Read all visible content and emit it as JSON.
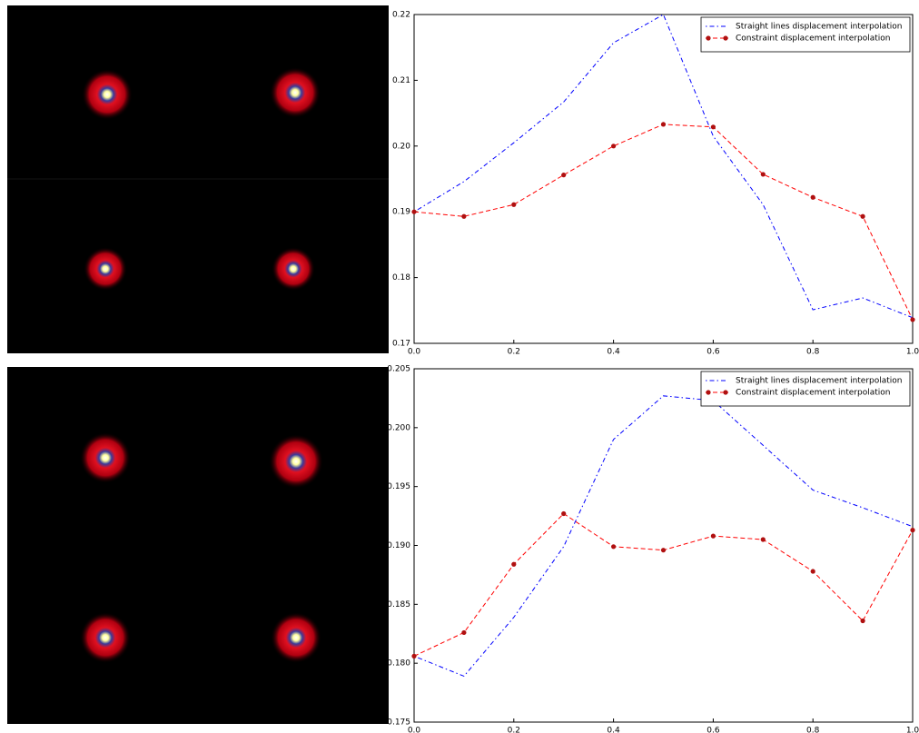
{
  "chart_data": [
    {
      "type": "line",
      "legend": "upper right",
      "x": [
        0,
        0.1,
        0.2,
        0.3,
        0.4,
        0.5,
        0.6,
        0.7,
        0.8,
        0.9,
        1.0
      ],
      "xlim": [
        0,
        1
      ],
      "ylim": [
        0.17,
        0.22
      ],
      "xticks": [
        {
          "value": 0,
          "label": "0.0"
        },
        {
          "value": 0.2,
          "label": "0.2"
        },
        {
          "value": 0.4,
          "label": "0.4"
        },
        {
          "value": 0.6,
          "label": "0.6"
        },
        {
          "value": 0.8,
          "label": "0.8"
        },
        {
          "value": 1,
          "label": "1.0"
        }
      ],
      "yticks": [
        0.17,
        0.18,
        0.19,
        {
          "value": 0.2,
          "label": "0.20"
        },
        0.21,
        0.22
      ],
      "series": [
        {
          "name": "Straight lines displacement interpolation",
          "color": "#0000ff",
          "linestyle": "dashdot",
          "marker": null,
          "values": [
            0.19,
            0.1946,
            0.2005,
            0.2067,
            0.2157,
            0.22,
            0.2015,
            0.1911,
            0.1751,
            0.1769,
            0.1739
          ]
        },
        {
          "name": "Constraint displacement interpolation",
          "color": "#ff0000",
          "linestyle": "dashed",
          "marker": "#b01010",
          "values": [
            0.19,
            0.1893,
            0.1911,
            0.1956,
            0.2,
            0.2033,
            0.2029,
            0.1957,
            0.1922,
            0.1893,
            0.1736
          ]
        }
      ]
    },
    {
      "type": "line",
      "legend": "upper right",
      "x": [
        0,
        0.1,
        0.2,
        0.3,
        0.4,
        0.5,
        0.6,
        0.7,
        0.8,
        0.9,
        1.0
      ],
      "xlim": [
        0,
        1
      ],
      "ylim": [
        0.175,
        0.205
      ],
      "xticks": [
        {
          "value": 0,
          "label": "0.0"
        },
        {
          "value": 0.2,
          "label": "0.2"
        },
        {
          "value": 0.4,
          "label": "0.4"
        },
        {
          "value": 0.6,
          "label": "0.6"
        },
        {
          "value": 0.8,
          "label": "0.8"
        },
        {
          "value": 1,
          "label": "1.0"
        }
      ],
      "yticks": [
        0.175,
        {
          "value": 0.18,
          "label": "0.180"
        },
        0.185,
        {
          "value": 0.19,
          "label": "0.190"
        },
        0.195,
        {
          "value": 0.2,
          "label": "0.200"
        },
        0.205
      ],
      "series": [
        {
          "name": "Straight lines displacement interpolation",
          "color": "#0000ff",
          "linestyle": "dashdot",
          "marker": null,
          "values": [
            0.1806,
            0.1789,
            0.1839,
            0.1899,
            0.199,
            0.2027,
            0.2023,
            0.1985,
            0.1947,
            0.1932,
            0.1916
          ]
        },
        {
          "name": "Constraint displacement interpolation",
          "color": "#ff0000",
          "linestyle": "dashed",
          "marker": "#b01010",
          "values": [
            0.1806,
            0.1826,
            0.1884,
            0.1927,
            0.1899,
            0.1896,
            0.1908,
            0.1905,
            0.1878,
            0.1836,
            0.1913
          ]
        }
      ]
    }
  ]
}
